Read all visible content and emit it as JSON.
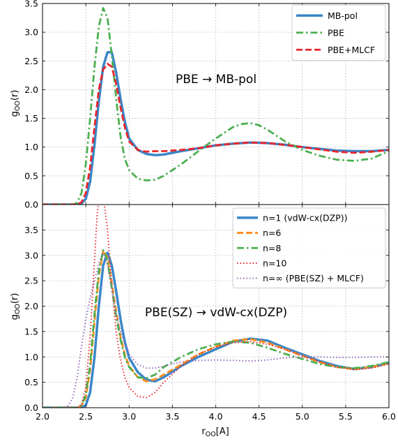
{
  "chart_data": [
    {
      "type": "line",
      "annotation": "PBE → MB-pol",
      "ylabel": "g_OO(r)",
      "xlim": [
        2.0,
        6.0
      ],
      "ylim": [
        0.0,
        3.5
      ],
      "yticks": [
        "0.0",
        "0.5",
        "1.0",
        "1.5",
        "2.0",
        "2.5",
        "3.0",
        "3.5"
      ],
      "grid": true,
      "legend_position": "top-right",
      "series": [
        {
          "name": "MB-pol",
          "color": "#3a86c8",
          "style": "solid",
          "x": [
            2.0,
            2.4,
            2.45,
            2.5,
            2.55,
            2.6,
            2.65,
            2.7,
            2.75,
            2.8,
            2.85,
            2.9,
            2.95,
            3.0,
            3.1,
            3.2,
            3.3,
            3.4,
            3.5,
            3.6,
            3.8,
            4.0,
            4.2,
            4.4,
            4.6,
            4.8,
            5.0,
            5.2,
            5.4,
            5.6,
            5.8,
            6.0
          ],
          "y": [
            0.0,
            0.0,
            0.02,
            0.1,
            0.4,
            1.05,
            1.8,
            2.4,
            2.65,
            2.65,
            2.3,
            1.85,
            1.45,
            1.15,
            0.95,
            0.88,
            0.86,
            0.87,
            0.9,
            0.93,
            0.98,
            1.03,
            1.06,
            1.08,
            1.07,
            1.04,
            1.0,
            0.97,
            0.94,
            0.93,
            0.93,
            0.95
          ]
        },
        {
          "name": "PBE",
          "color": "#4caf50",
          "style": "dashdot",
          "x": [
            2.0,
            2.35,
            2.4,
            2.45,
            2.5,
            2.55,
            2.6,
            2.65,
            2.7,
            2.75,
            2.8,
            2.85,
            2.9,
            2.95,
            3.0,
            3.1,
            3.2,
            3.3,
            3.4,
            3.6,
            3.8,
            4.0,
            4.2,
            4.3,
            4.4,
            4.5,
            4.6,
            4.8,
            5.0,
            5.2,
            5.4,
            5.6,
            5.8,
            6.0
          ],
          "y": [
            0.0,
            0.0,
            0.03,
            0.2,
            0.7,
            1.5,
            2.4,
            3.1,
            3.42,
            3.25,
            2.6,
            1.85,
            1.2,
            0.8,
            0.6,
            0.45,
            0.42,
            0.43,
            0.5,
            0.7,
            0.93,
            1.15,
            1.35,
            1.4,
            1.42,
            1.38,
            1.3,
            1.1,
            0.95,
            0.85,
            0.78,
            0.76,
            0.8,
            0.93
          ]
        },
        {
          "name": "PBE+MLCF",
          "color": "#e8252a",
          "style": "dashed",
          "x": [
            2.0,
            2.4,
            2.45,
            2.5,
            2.55,
            2.6,
            2.65,
            2.7,
            2.75,
            2.8,
            2.85,
            2.9,
            2.95,
            3.0,
            3.1,
            3.2,
            3.3,
            3.4,
            3.6,
            3.8,
            4.0,
            4.2,
            4.4,
            4.6,
            4.8,
            5.0,
            5.2,
            5.4,
            5.6,
            5.8,
            6.0
          ],
          "y": [
            0.0,
            0.0,
            0.04,
            0.2,
            0.65,
            1.35,
            2.0,
            2.35,
            2.45,
            2.4,
            2.1,
            1.7,
            1.35,
            1.1,
            0.95,
            0.92,
            0.93,
            0.93,
            0.95,
            0.98,
            1.03,
            1.06,
            1.08,
            1.07,
            1.04,
            1.0,
            0.96,
            0.92,
            0.9,
            0.92,
            0.95
          ]
        }
      ]
    },
    {
      "type": "line",
      "annotation": "PBE(SZ) → vdW-cx(DZP)",
      "xlabel": "r_OO[A]",
      "ylabel": "g_OO(r)",
      "xlim": [
        2.0,
        6.0
      ],
      "ylim": [
        0.0,
        4.0
      ],
      "xticks": [
        "2.0",
        "2.5",
        "3.0",
        "3.5",
        "4.0",
        "4.5",
        "5.0",
        "5.5",
        "6.0"
      ],
      "yticks": [
        "0.0",
        "0.5",
        "1.0",
        "1.5",
        "2.0",
        "2.5",
        "3.0",
        "3.5"
      ],
      "grid": true,
      "legend_position": "top-right",
      "series": [
        {
          "name": "n=1 (vdW-cx(DZP))",
          "color": "#3a86c8",
          "style": "solid",
          "x": [
            2.0,
            2.45,
            2.5,
            2.55,
            2.6,
            2.65,
            2.7,
            2.75,
            2.8,
            2.85,
            2.9,
            2.95,
            3.0,
            3.1,
            3.2,
            3.3,
            3.4,
            3.6,
            3.8,
            4.0,
            4.2,
            4.4,
            4.6,
            4.8,
            5.0,
            5.2,
            5.4,
            5.6,
            5.8,
            6.0
          ],
          "y": [
            0.0,
            0.0,
            0.05,
            0.3,
            1.0,
            2.0,
            2.8,
            3.05,
            2.8,
            2.3,
            1.75,
            1.3,
            0.98,
            0.7,
            0.55,
            0.52,
            0.6,
            0.82,
            1.0,
            1.15,
            1.3,
            1.36,
            1.32,
            1.18,
            1.05,
            0.92,
            0.82,
            0.76,
            0.8,
            0.88
          ]
        },
        {
          "name": "n=6",
          "color": "#ff8c1a",
          "style": "dashed",
          "x": [
            2.0,
            2.4,
            2.45,
            2.5,
            2.55,
            2.6,
            2.65,
            2.7,
            2.75,
            2.8,
            2.85,
            2.9,
            2.95,
            3.0,
            3.1,
            3.2,
            3.3,
            3.4,
            3.6,
            3.8,
            4.0,
            4.2,
            4.4,
            4.6,
            4.8,
            5.0,
            5.2,
            5.4,
            5.6,
            5.8,
            6.0
          ],
          "y": [
            0.0,
            0.0,
            0.04,
            0.2,
            0.75,
            1.7,
            2.6,
            3.1,
            2.95,
            2.45,
            1.9,
            1.4,
            1.05,
            0.82,
            0.6,
            0.52,
            0.56,
            0.65,
            0.85,
            1.05,
            1.2,
            1.32,
            1.35,
            1.28,
            1.15,
            1.02,
            0.9,
            0.8,
            0.76,
            0.8,
            0.88
          ]
        },
        {
          "name": "n=8",
          "color": "#4caf50",
          "style": "dashdot",
          "x": [
            2.0,
            2.4,
            2.45,
            2.5,
            2.55,
            2.6,
            2.65,
            2.7,
            2.75,
            2.8,
            2.85,
            2.9,
            2.95,
            3.0,
            3.1,
            3.2,
            3.3,
            3.4,
            3.6,
            3.8,
            4.0,
            4.2,
            4.4,
            4.6,
            4.8,
            5.0,
            5.2,
            5.4,
            5.6,
            5.8,
            6.0
          ],
          "y": [
            0.0,
            0.0,
            0.05,
            0.25,
            0.85,
            1.85,
            2.7,
            3.1,
            2.9,
            2.35,
            1.8,
            1.35,
            1.0,
            0.8,
            0.6,
            0.58,
            0.65,
            0.8,
            1.0,
            1.15,
            1.25,
            1.3,
            1.28,
            1.18,
            1.06,
            0.96,
            0.86,
            0.8,
            0.78,
            0.82,
            0.9
          ]
        },
        {
          "name": "n=10",
          "color": "#e8252a",
          "style": "dotted",
          "x": [
            2.0,
            2.4,
            2.45,
            2.5,
            2.55,
            2.6,
            2.63,
            2.66,
            2.7,
            2.75,
            2.8,
            2.85,
            2.9,
            2.95,
            3.0,
            3.1,
            3.2,
            3.3,
            3.4,
            3.6,
            3.8,
            4.0,
            4.2,
            4.4,
            4.6,
            4.8,
            5.0,
            5.2,
            5.4,
            5.6,
            5.8,
            6.0
          ],
          "y": [
            0.0,
            0.0,
            0.06,
            0.4,
            1.4,
            2.9,
            3.8,
            4.2,
            4.2,
            3.5,
            2.4,
            1.5,
            0.95,
            0.6,
            0.4,
            0.22,
            0.2,
            0.3,
            0.5,
            0.82,
            1.05,
            1.2,
            1.28,
            1.3,
            1.25,
            1.15,
            1.02,
            0.9,
            0.8,
            0.75,
            0.78,
            0.86
          ]
        },
        {
          "name": "n=∞ (PBE(SZ) + MLCF)",
          "color": "#9467bd",
          "style": "dotted",
          "x": [
            2.0,
            2.25,
            2.3,
            2.35,
            2.4,
            2.45,
            2.5,
            2.55,
            2.6,
            2.65,
            2.7,
            2.75,
            2.8,
            2.85,
            2.9,
            3.0,
            3.1,
            3.2,
            3.3,
            3.4,
            3.6,
            3.8,
            4.0,
            4.2,
            4.4,
            4.6,
            4.8,
            5.0,
            5.2,
            5.4,
            5.6,
            5.8,
            6.0
          ],
          "y": [
            0.0,
            0.0,
            0.05,
            0.2,
            0.6,
            1.2,
            1.75,
            2.15,
            2.5,
            2.85,
            3.05,
            2.8,
            2.35,
            1.85,
            1.5,
            1.05,
            0.85,
            0.78,
            0.78,
            0.82,
            0.9,
            0.93,
            0.94,
            0.93,
            0.92,
            0.94,
            0.98,
            1.0,
            1.0,
            0.99,
            0.99,
            1.0,
            1.0
          ]
        }
      ]
    }
  ]
}
